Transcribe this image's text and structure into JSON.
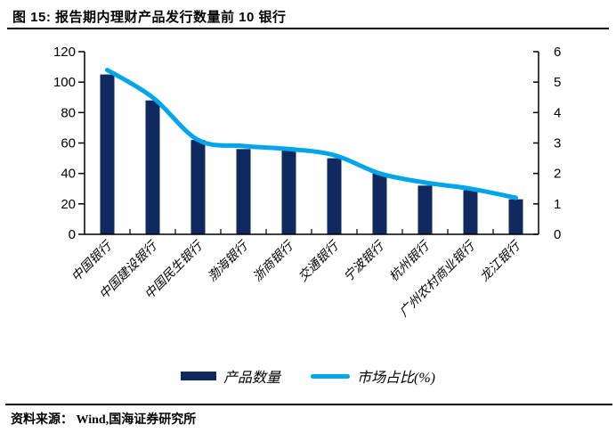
{
  "figure": {
    "title": "图 15: 报告期内理财产品发行数量前 10 银行",
    "source": "资料来源： Wind,国海证券研究所"
  },
  "legend": {
    "bar_label": "产品数量",
    "line_label": "市场占比(%)"
  },
  "colors": {
    "bar": "#10295f",
    "line": "#00a6e9",
    "axis": "#000000",
    "text": "#000000"
  },
  "chart_data": {
    "type": "bar",
    "subtype": "bar-line-combo",
    "title": "报告期内理财产品发行数量前 10 银行",
    "categories": [
      "中国银行",
      "中国建设银行",
      "中国民生银行",
      "渤海银行",
      "浙商银行",
      "交通银行",
      "宁波银行",
      "杭州银行",
      "广州农村商业银行",
      "龙江银行"
    ],
    "series": [
      {
        "name": "产品数量",
        "type": "bar",
        "axis": "left",
        "values": [
          105,
          88,
          62,
          56,
          55,
          50,
          40,
          32,
          29,
          23
        ]
      },
      {
        "name": "市场占比(%)",
        "type": "line",
        "axis": "right",
        "values": [
          5.4,
          4.5,
          3.1,
          2.9,
          2.8,
          2.6,
          2.0,
          1.7,
          1.5,
          1.2
        ]
      }
    ],
    "left_axis": {
      "min": 0,
      "max": 120,
      "ticks": [
        0,
        20,
        40,
        60,
        80,
        100,
        120
      ]
    },
    "right_axis": {
      "min": 0,
      "max": 6,
      "ticks": [
        0,
        1,
        2,
        3,
        4,
        5,
        6
      ]
    },
    "grid": false,
    "legend_position": "bottom"
  }
}
